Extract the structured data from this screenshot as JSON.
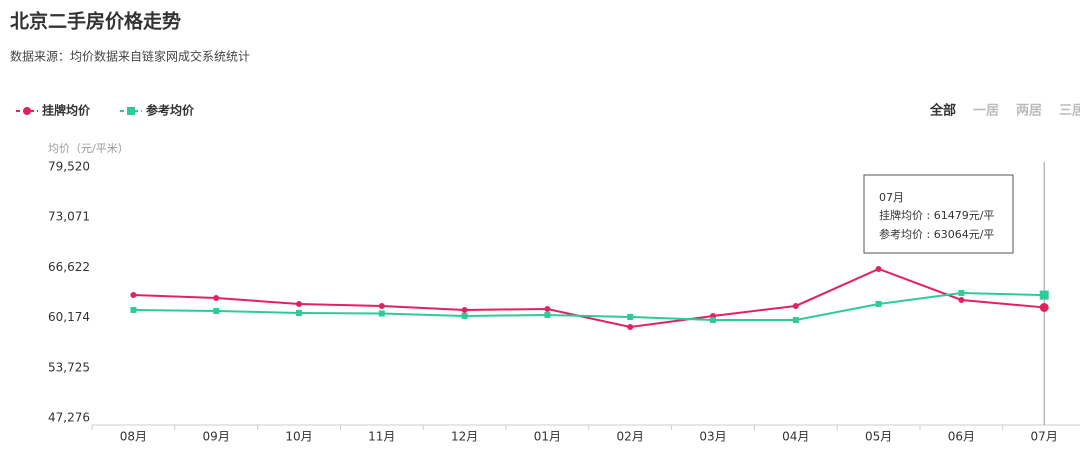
{
  "chart_data": {
    "type": "line",
    "title": "北京二手房价格走势",
    "subtitle": "数据来源：均价数据来自链家网成交系统统计",
    "tabs": [
      "全部",
      "一居",
      "两居",
      "三居"
    ],
    "y_label": "均价（元/平米）",
    "categories": [
      "08月",
      "09月",
      "10月",
      "11月",
      "12月",
      "01月",
      "02月",
      "03月",
      "04月",
      "05月",
      "06月",
      "07月"
    ],
    "series": [
      {
        "name": "挂牌均价",
        "color": "#e0235f",
        "marker": "circle",
        "values": [
          63082,
          62696,
          61925,
          61668,
          61154,
          61283,
          58970,
          60383,
          61668,
          66422,
          62439,
          61479
        ]
      },
      {
        "name": "参考均价",
        "color": "#2fcb96",
        "marker": "square",
        "values": [
          61154,
          61025,
          60768,
          60700,
          60383,
          60512,
          60254,
          59869,
          59869,
          61925,
          63339,
          63064
        ]
      }
    ],
    "ylim": [
      47276,
      79520
    ],
    "yticks": [
      {
        "value": 47276,
        "label": "47,276"
      },
      {
        "value": 53725,
        "label": "53,725"
      },
      {
        "value": 60174,
        "label": "60,174"
      },
      {
        "value": 66622,
        "label": "66,622"
      },
      {
        "value": 73071,
        "label": "73,071"
      },
      {
        "value": 79520,
        "label": "79,520"
      }
    ],
    "grid": false,
    "tooltip": {
      "title": "07月",
      "lines": [
        "挂牌均价 : 61479元/平",
        "参考均价 : 63064元/平"
      ]
    }
  }
}
